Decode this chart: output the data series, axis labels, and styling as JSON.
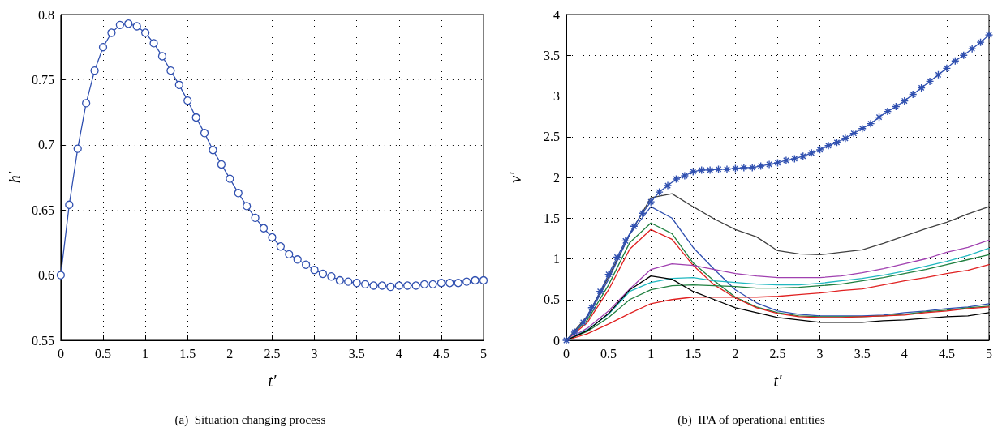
{
  "chart_data": [
    {
      "type": "line",
      "xlabel": "t′",
      "ylabel": "h′",
      "annotations": [
        "(a)  Situation changing process"
      ],
      "xlim": [
        0,
        5
      ],
      "xticks": [
        0,
        0.5,
        1,
        1.5,
        2,
        2.5,
        3,
        3.5,
        4,
        4.5,
        5
      ],
      "ylim": [
        0.55,
        0.8
      ],
      "yticks": [
        0.55,
        0.6,
        0.65,
        0.7,
        0.75,
        0.8
      ],
      "grid": true,
      "line_style": "solid",
      "marker": "circle",
      "x": [
        0,
        0.1,
        0.2,
        0.3,
        0.4,
        0.5,
        0.6,
        0.7,
        0.8,
        0.9,
        1,
        1.1,
        1.2,
        1.3,
        1.4,
        1.5,
        1.6,
        1.7,
        1.8,
        1.9,
        2,
        2.1,
        2.2,
        2.3,
        2.4,
        2.5,
        2.6,
        2.7,
        2.8,
        2.9,
        3,
        3.1,
        3.2,
        3.3,
        3.4,
        3.5,
        3.6,
        3.7,
        3.8,
        3.9,
        4,
        4.1,
        4.2,
        4.3,
        4.4,
        4.5,
        4.6,
        4.7,
        4.8,
        4.9,
        5
      ],
      "series": [
        {
          "color": "#3050b0",
          "values": [
            0.6,
            0.654,
            0.697,
            0.732,
            0.757,
            0.775,
            0.786,
            0.792,
            0.793,
            0.791,
            0.786,
            0.778,
            0.768,
            0.757,
            0.746,
            0.734,
            0.721,
            0.709,
            0.696,
            0.685,
            0.674,
            0.663,
            0.653,
            0.644,
            0.636,
            0.629,
            0.622,
            0.616,
            0.612,
            0.608,
            0.604,
            0.601,
            0.599,
            0.596,
            0.595,
            0.594,
            0.593,
            0.592,
            0.592,
            0.591,
            0.592,
            0.592,
            0.592,
            0.593,
            0.593,
            0.594,
            0.594,
            0.594,
            0.595,
            0.596,
            0.596
          ]
        }
      ]
    },
    {
      "type": "line",
      "xlabel": "t′",
      "ylabel": "v′",
      "annotations": [
        "(b)  IPA of operational entities"
      ],
      "xlim": [
        0,
        5
      ],
      "xticks": [
        0,
        0.5,
        1,
        1.5,
        2,
        2.5,
        3,
        3.5,
        4,
        4.5,
        5
      ],
      "ylim": [
        0,
        4
      ],
      "yticks": [
        0,
        0.5,
        1,
        1.5,
        2,
        2.5,
        3,
        3.5,
        4
      ],
      "grid": true,
      "line_style": "solid",
      "x": [
        0,
        0.25,
        0.5,
        0.75,
        1,
        1.25,
        1.5,
        1.75,
        2,
        2.25,
        2.5,
        2.75,
        3,
        3.25,
        3.5,
        3.75,
        4,
        4.25,
        4.5,
        4.75,
        5
      ],
      "series": [
        {
          "color": "#404040",
          "marker": "none",
          "values": [
            0,
            0.3,
            0.78,
            1.3,
            1.75,
            1.8,
            1.64,
            1.49,
            1.36,
            1.27,
            1.1,
            1.06,
            1.05,
            1.08,
            1.11,
            1.19,
            1.28,
            1.37,
            1.45,
            1.55,
            1.64
          ]
        },
        {
          "color": "#3050b0",
          "marker": "none",
          "values": [
            0,
            0.28,
            0.75,
            1.3,
            1.64,
            1.5,
            1.14,
            0.87,
            0.62,
            0.46,
            0.36,
            0.32,
            0.3,
            0.3,
            0.3,
            0.31,
            0.34,
            0.36,
            0.39,
            0.41,
            0.45
          ]
        },
        {
          "color": "#208040",
          "marker": "none",
          "values": [
            0,
            0.25,
            0.68,
            1.2,
            1.44,
            1.31,
            0.95,
            0.73,
            0.53,
            0.41,
            0.34,
            0.3,
            0.29,
            0.29,
            0.29,
            0.3,
            0.32,
            0.35,
            0.37,
            0.4,
            0.42
          ]
        },
        {
          "color": "#e02020",
          "marker": "none",
          "values": [
            0,
            0.22,
            0.62,
            1.12,
            1.36,
            1.24,
            0.92,
            0.68,
            0.52,
            0.4,
            0.33,
            0.29,
            0.28,
            0.28,
            0.29,
            0.3,
            0.31,
            0.34,
            0.36,
            0.39,
            0.41
          ]
        },
        {
          "color": "#a040b0",
          "marker": "none",
          "values": [
            0,
            0.15,
            0.36,
            0.63,
            0.87,
            0.94,
            0.92,
            0.87,
            0.82,
            0.79,
            0.77,
            0.77,
            0.77,
            0.79,
            0.83,
            0.88,
            0.94,
            1.0,
            1.08,
            1.14,
            1.23
          ]
        },
        {
          "color": "#20b8c0",
          "marker": "none",
          "values": [
            0,
            0.13,
            0.32,
            0.6,
            0.71,
            0.76,
            0.77,
            0.73,
            0.71,
            0.69,
            0.68,
            0.68,
            0.7,
            0.73,
            0.76,
            0.8,
            0.85,
            0.91,
            0.97,
            1.04,
            1.13
          ]
        },
        {
          "color": "#208040",
          "marker": "none",
          "values": [
            0,
            0.11,
            0.28,
            0.5,
            0.62,
            0.67,
            0.68,
            0.67,
            0.66,
            0.64,
            0.64,
            0.65,
            0.67,
            0.69,
            0.73,
            0.77,
            0.82,
            0.87,
            0.93,
            0.99,
            1.05
          ]
        },
        {
          "color": "#e02020",
          "marker": "none",
          "values": [
            0,
            0.08,
            0.2,
            0.33,
            0.45,
            0.5,
            0.53,
            0.53,
            0.53,
            0.53,
            0.54,
            0.56,
            0.58,
            0.61,
            0.63,
            0.68,
            0.73,
            0.77,
            0.82,
            0.86,
            0.93
          ]
        },
        {
          "color": "#000000",
          "marker": "none",
          "values": [
            0,
            0.12,
            0.33,
            0.62,
            0.79,
            0.75,
            0.6,
            0.5,
            0.4,
            0.34,
            0.28,
            0.25,
            0.22,
            0.22,
            0.22,
            0.24,
            0.25,
            0.27,
            0.29,
            0.3,
            0.34
          ]
        },
        {
          "color": "#3050b0",
          "marker": "cross",
          "x": [
            0,
            0.1,
            0.2,
            0.3,
            0.4,
            0.5,
            0.6,
            0.7,
            0.8,
            0.9,
            1,
            1.1,
            1.2,
            1.3,
            1.4,
            1.5,
            1.6,
            1.7,
            1.8,
            1.9,
            2,
            2.1,
            2.2,
            2.3,
            2.4,
            2.5,
            2.6,
            2.7,
            2.8,
            2.9,
            3,
            3.1,
            3.2,
            3.3,
            3.4,
            3.5,
            3.6,
            3.7,
            3.8,
            3.9,
            4,
            4.1,
            4.2,
            4.3,
            4.4,
            4.5,
            4.6,
            4.7,
            4.8,
            4.9,
            5
          ],
          "values": [
            0,
            0.1,
            0.22,
            0.4,
            0.6,
            0.81,
            1.02,
            1.22,
            1.4,
            1.56,
            1.7,
            1.82,
            1.9,
            1.98,
            2.02,
            2.07,
            2.09,
            2.09,
            2.1,
            2.1,
            2.11,
            2.12,
            2.12,
            2.14,
            2.16,
            2.18,
            2.21,
            2.23,
            2.26,
            2.3,
            2.34,
            2.39,
            2.43,
            2.48,
            2.54,
            2.6,
            2.66,
            2.74,
            2.81,
            2.87,
            2.94,
            3.02,
            3.1,
            3.18,
            3.26,
            3.34,
            3.43,
            3.5,
            3.58,
            3.66,
            3.75
          ]
        }
      ]
    }
  ]
}
